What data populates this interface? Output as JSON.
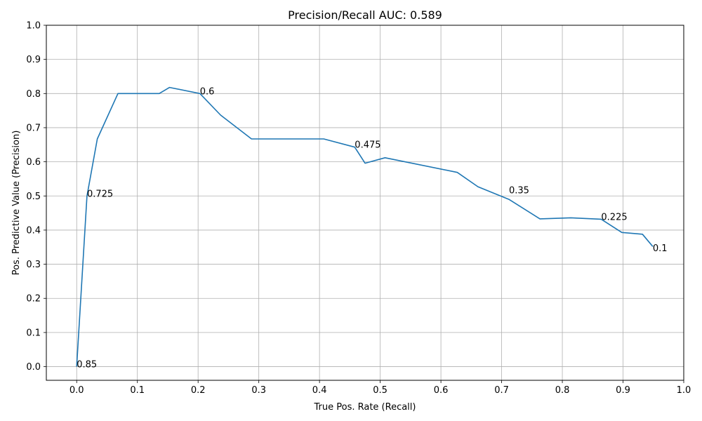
{
  "chart_data": {
    "type": "line",
    "title": "Precision/Recall AUC: 0.589",
    "xlabel": "True Pos. Rate (Recall)",
    "ylabel": "Pos. Predictive Value (Precision)",
    "xlim": [
      -0.05,
      1.0
    ],
    "ylim": [
      -0.04,
      1.0
    ],
    "x_ticks": [
      "0.0",
      "0.1",
      "0.2",
      "0.3",
      "0.4",
      "0.5",
      "0.6",
      "0.7",
      "0.8",
      "0.9",
      "1.0"
    ],
    "y_ticks": [
      "0.0",
      "0.1",
      "0.2",
      "0.3",
      "0.4",
      "0.5",
      "0.6",
      "0.7",
      "0.8",
      "0.9",
      "1.0"
    ],
    "grid": true,
    "line_color": "#1f77b4",
    "series": [
      {
        "x": [
          0.0,
          0.017,
          0.034,
          0.068,
          0.136,
          0.153,
          0.203,
          0.237,
          0.288,
          0.407,
          0.458,
          0.475,
          0.508,
          0.627,
          0.661,
          0.712,
          0.763,
          0.814,
          0.864,
          0.898,
          0.932,
          0.949
        ],
        "y": [
          0.0,
          0.5,
          0.667,
          0.8,
          0.8,
          0.818,
          0.8,
          0.737,
          0.667,
          0.667,
          0.643,
          0.596,
          0.612,
          0.569,
          0.527,
          0.49,
          0.433,
          0.436,
          0.432,
          0.393,
          0.388,
          0.352
        ]
      }
    ],
    "annotations": [
      {
        "text": "0.85",
        "x": 0.0,
        "y": 0.0
      },
      {
        "text": "0.725",
        "x": 0.017,
        "y": 0.5
      },
      {
        "text": "0.6",
        "x": 0.203,
        "y": 0.8
      },
      {
        "text": "0.475",
        "x": 0.458,
        "y": 0.643
      },
      {
        "text": "0.35",
        "x": 0.712,
        "y": 0.51
      },
      {
        "text": "0.225",
        "x": 0.864,
        "y": 0.432
      },
      {
        "text": "0.1",
        "x": 0.949,
        "y": 0.34
      }
    ]
  }
}
